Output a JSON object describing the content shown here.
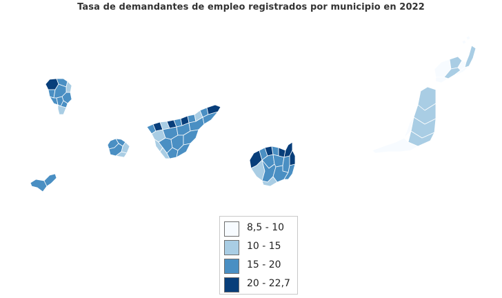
{
  "title": "Tasa de demandantes de empleo registrados por municipio en 2022",
  "colors": {
    "c1": "#f7fbff",
    "c2": "#a9cde4",
    "c3": "#4a8fc3",
    "c4": "#083e7a"
  },
  "legend": [
    {
      "label": "8,5 - 10",
      "color": "#f7fbff"
    },
    {
      "label": "10 - 15",
      "color": "#a9cde4"
    },
    {
      "label": "15 - 20",
      "color": "#4a8fc3"
    },
    {
      "label": "20 - 22,7",
      "color": "#083e7a"
    }
  ]
}
